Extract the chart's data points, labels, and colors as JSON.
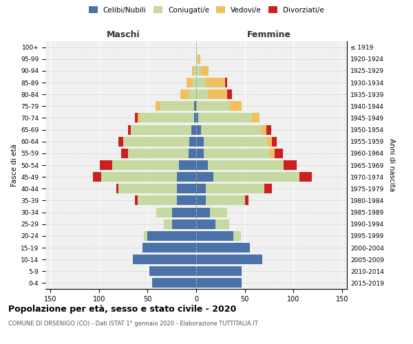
{
  "age_groups": [
    "0-4",
    "5-9",
    "10-14",
    "15-19",
    "20-24",
    "25-29",
    "30-34",
    "35-39",
    "40-44",
    "45-49",
    "50-54",
    "55-59",
    "60-64",
    "65-69",
    "70-74",
    "75-79",
    "80-84",
    "85-89",
    "90-94",
    "95-99",
    "100+"
  ],
  "birth_years": [
    "2015-2019",
    "2010-2014",
    "2005-2009",
    "2000-2004",
    "1995-1999",
    "1990-1994",
    "1985-1989",
    "1980-1984",
    "1975-1979",
    "1970-1974",
    "1965-1969",
    "1960-1964",
    "1955-1959",
    "1950-1954",
    "1945-1949",
    "1940-1944",
    "1935-1939",
    "1930-1934",
    "1925-1929",
    "1920-1924",
    "≤ 1919"
  ],
  "colors": {
    "celibe": "#4a72a8",
    "coniugato": "#c5d9a0",
    "vedovo": "#f0c060",
    "divorziato": "#cc2020"
  },
  "male": {
    "celibe": [
      45,
      48,
      65,
      55,
      50,
      25,
      25,
      20,
      20,
      20,
      18,
      8,
      7,
      5,
      2,
      2,
      0,
      0,
      0,
      0,
      0
    ],
    "coniugato": [
      0,
      0,
      0,
      0,
      4,
      8,
      16,
      40,
      60,
      78,
      68,
      62,
      68,
      62,
      55,
      35,
      8,
      4,
      2,
      0,
      0
    ],
    "vedovo": [
      0,
      0,
      0,
      0,
      0,
      0,
      0,
      0,
      0,
      0,
      0,
      0,
      0,
      0,
      3,
      5,
      8,
      6,
      2,
      0,
      0
    ],
    "divorziato": [
      0,
      0,
      0,
      0,
      0,
      0,
      0,
      3,
      2,
      8,
      13,
      7,
      5,
      3,
      3,
      0,
      0,
      0,
      0,
      0,
      0
    ]
  },
  "female": {
    "nubile": [
      47,
      47,
      68,
      55,
      38,
      20,
      14,
      10,
      10,
      18,
      12,
      8,
      8,
      5,
      2,
      0,
      0,
      0,
      0,
      0,
      0
    ],
    "coniugata": [
      0,
      0,
      0,
      0,
      8,
      14,
      18,
      40,
      60,
      88,
      78,
      68,
      65,
      62,
      55,
      35,
      12,
      10,
      5,
      2,
      0
    ],
    "vedova": [
      0,
      0,
      0,
      0,
      0,
      0,
      0,
      0,
      0,
      0,
      0,
      5,
      5,
      5,
      8,
      12,
      20,
      20,
      8,
      2,
      1
    ],
    "divorziata": [
      0,
      0,
      0,
      0,
      0,
      0,
      0,
      4,
      8,
      13,
      13,
      8,
      5,
      5,
      0,
      0,
      5,
      2,
      0,
      0,
      0
    ]
  },
  "xlim": 155,
  "title": "Popolazione per età, sesso e stato civile - 2020",
  "subtitle": "COMUNE DI ORSENIGO (CO) - Dati ISTAT 1° gennaio 2020 - Elaborazione TUTTITALIA.IT",
  "ylabel_left": "Fasce di età",
  "ylabel_right": "Anni di nascita",
  "xlabel_left": "Maschi",
  "xlabel_right": "Femmine",
  "legend_labels": [
    "Celibi/Nubili",
    "Coniugati/e",
    "Vedovi/e",
    "Divorziati/e"
  ],
  "bg_color": "#f0f0f0"
}
